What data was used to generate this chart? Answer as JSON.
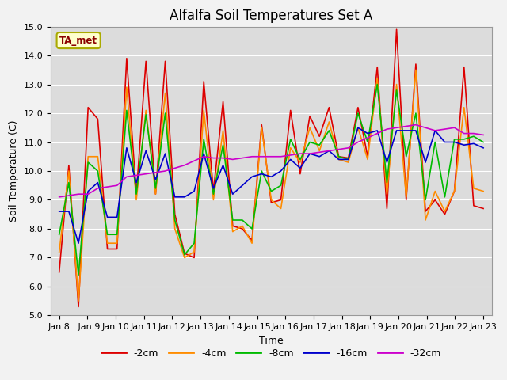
{
  "title": "Alfalfa Soil Temperatures Set A",
  "xlabel": "Time",
  "ylabel": "Soil Temperature (C)",
  "ylim": [
    5.0,
    15.0
  ],
  "yticks": [
    5.0,
    6.0,
    7.0,
    8.0,
    9.0,
    10.0,
    11.0,
    12.0,
    13.0,
    14.0,
    15.0
  ],
  "xtick_labels": [
    "Jan 8",
    "Jan 9",
    "Jan 10",
    "Jan 11",
    "Jan 12",
    "Jan 13",
    "Jan 14",
    "Jan 15",
    "Jan 16",
    "Jan 17",
    "Jan 18",
    "Jan 19",
    "Jan 20",
    "Jan 21",
    "Jan 22",
    "Jan 23"
  ],
  "series": {
    "-2cm": {
      "color": "#dd0000",
      "linewidth": 1.2,
      "values": [
        6.5,
        10.2,
        5.3,
        12.2,
        11.8,
        7.3,
        7.3,
        13.9,
        9.2,
        13.8,
        9.2,
        13.8,
        8.5,
        7.15,
        7.0,
        13.1,
        9.3,
        12.4,
        8.1,
        8.0,
        7.6,
        11.6,
        8.9,
        9.0,
        12.1,
        9.9,
        11.9,
        11.2,
        12.2,
        10.5,
        10.45,
        12.2,
        10.5,
        13.6,
        8.7,
        14.9,
        9.0,
        13.7,
        8.6,
        9.0,
        8.5,
        9.3,
        13.6,
        8.8,
        8.7
      ]
    },
    "-4cm": {
      "color": "#ff8c00",
      "linewidth": 1.2,
      "values": [
        7.2,
        10.0,
        5.5,
        10.5,
        10.5,
        7.5,
        7.5,
        12.9,
        9.0,
        12.1,
        9.2,
        12.7,
        8.0,
        7.0,
        7.2,
        12.1,
        9.0,
        11.4,
        7.9,
        8.1,
        7.5,
        11.5,
        9.0,
        8.7,
        10.8,
        10.3,
        11.5,
        10.7,
        11.7,
        10.4,
        10.3,
        11.5,
        10.4,
        13.2,
        9.2,
        13.0,
        9.1,
        13.5,
        8.3,
        9.3,
        8.6,
        9.3,
        12.2,
        9.4,
        9.3
      ]
    },
    "-8cm": {
      "color": "#00bb00",
      "linewidth": 1.2,
      "values": [
        7.8,
        9.6,
        6.4,
        10.3,
        10.0,
        7.8,
        7.8,
        12.1,
        9.2,
        11.95,
        9.4,
        12.0,
        8.3,
        7.1,
        7.5,
        11.1,
        9.2,
        10.9,
        8.3,
        8.3,
        8.0,
        10.0,
        9.3,
        9.5,
        11.1,
        10.4,
        11.0,
        10.9,
        11.4,
        10.5,
        10.4,
        12.0,
        11.0,
        13.0,
        9.6,
        12.8,
        10.5,
        12.0,
        9.0,
        11.0,
        9.1,
        11.1,
        11.1,
        11.2,
        11.0
      ]
    },
    "-16cm": {
      "color": "#0000cc",
      "linewidth": 1.2,
      "values": [
        8.6,
        8.6,
        7.5,
        9.3,
        9.6,
        8.4,
        8.4,
        10.8,
        9.6,
        10.7,
        9.7,
        10.6,
        9.1,
        9.1,
        9.3,
        10.6,
        9.4,
        10.2,
        9.2,
        9.5,
        9.8,
        9.9,
        9.8,
        10.0,
        10.4,
        10.1,
        10.6,
        10.5,
        10.7,
        10.4,
        10.4,
        11.5,
        11.3,
        11.4,
        10.3,
        11.4,
        11.4,
        11.4,
        10.3,
        11.4,
        11.0,
        11.0,
        10.9,
        10.95,
        10.8
      ]
    },
    "-32cm": {
      "color": "#cc00cc",
      "linewidth": 1.2,
      "values": [
        9.1,
        9.15,
        9.2,
        9.2,
        9.4,
        9.45,
        9.5,
        9.8,
        9.85,
        9.9,
        9.95,
        10.0,
        10.1,
        10.2,
        10.35,
        10.5,
        10.45,
        10.45,
        10.4,
        10.45,
        10.5,
        10.5,
        10.5,
        10.5,
        10.55,
        10.6,
        10.6,
        10.65,
        10.7,
        10.75,
        10.8,
        11.0,
        11.15,
        11.3,
        11.45,
        11.5,
        11.55,
        11.6,
        11.5,
        11.4,
        11.45,
        11.5,
        11.3,
        11.3,
        11.25
      ]
    }
  },
  "annotation_label": "TA_met",
  "plot_bg_color": "#dcdcdc",
  "fig_bg_color": "#f2f2f2",
  "grid_color": "#ffffff",
  "title_fontsize": 12,
  "label_fontsize": 9,
  "tick_fontsize": 8
}
